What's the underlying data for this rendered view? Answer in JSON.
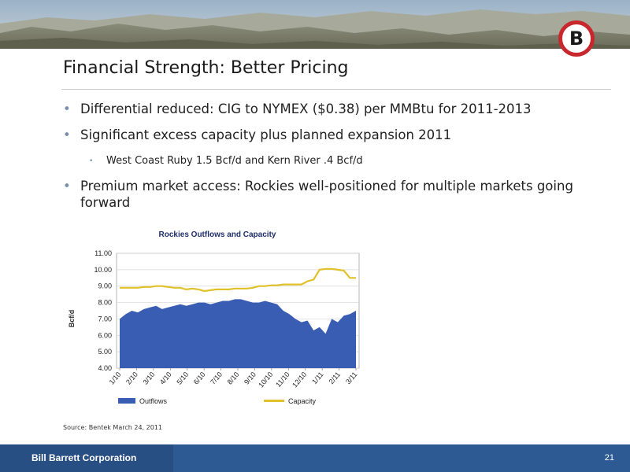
{
  "slide": {
    "title": "Financial Strength: Better Pricing",
    "bullets": [
      {
        "text": "Differential reduced: CIG to NYMEX ($0.38) per MMBtu for 2011-2013",
        "level": 1
      },
      {
        "text": "Significant excess capacity plus planned expansion 2011",
        "level": 1
      },
      {
        "text": "West Coast Ruby 1.5 Bcf/d and  Kern River .4 Bcf/d",
        "level": 2
      },
      {
        "text": "Premium market access: Rockies well-positioned for multiple markets going forward",
        "level": 1
      }
    ],
    "source": "Source: Bentek March 24, 2011"
  },
  "logo": {
    "letter": "B",
    "ring_color": "#c8282d"
  },
  "footer": {
    "company": "Bill Barrett Corporation",
    "page": "21"
  },
  "colors": {
    "outflows": "#3a5db4",
    "capacity": "#e0c12a",
    "footer": "#2e5a94"
  },
  "chart_data": {
    "type": "area",
    "title": "Rockies Outflows and Capacity",
    "xlabel": "",
    "ylabel": "Bcf/d",
    "ylim": [
      4.0,
      11.0
    ],
    "yticks": [
      "4.00",
      "5.00",
      "6.00",
      "7.00",
      "8.00",
      "9.00",
      "10.00",
      "11.00"
    ],
    "xticks": [
      "1/10",
      "2/10",
      "3/10",
      "4/10",
      "5/10",
      "6/10",
      "7/10",
      "8/10",
      "9/10",
      "10/10",
      "11/10",
      "12/10",
      "1/11",
      "2/11",
      "3/11"
    ],
    "grid": true,
    "legend_position": "bottom",
    "series": [
      {
        "name": "Outflows",
        "type": "area",
        "color": "#3a5db4",
        "values": [
          7.0,
          7.3,
          7.5,
          7.4,
          7.6,
          7.7,
          7.8,
          7.6,
          7.7,
          7.8,
          7.9,
          7.8,
          7.9,
          8.0,
          8.0,
          7.9,
          8.0,
          8.1,
          8.1,
          8.2,
          8.2,
          8.1,
          8.0,
          8.0,
          8.1,
          8.0,
          7.9,
          7.5,
          7.3,
          7.0,
          6.8,
          6.9,
          6.3,
          6.5,
          6.1,
          7.0,
          6.8,
          7.2,
          7.3,
          7.5
        ]
      },
      {
        "name": "Capacity",
        "type": "line",
        "color": "#e0c12a",
        "values": [
          8.9,
          8.9,
          8.9,
          8.9,
          8.95,
          8.95,
          9.0,
          9.0,
          8.95,
          8.9,
          8.9,
          8.8,
          8.85,
          8.8,
          8.7,
          8.75,
          8.8,
          8.8,
          8.8,
          8.85,
          8.85,
          8.85,
          8.9,
          9.0,
          9.0,
          9.05,
          9.05,
          9.1,
          9.1,
          9.1,
          9.1,
          9.3,
          9.4,
          10.0,
          10.05,
          10.05,
          10.0,
          9.95,
          9.5,
          9.5
        ]
      }
    ]
  }
}
